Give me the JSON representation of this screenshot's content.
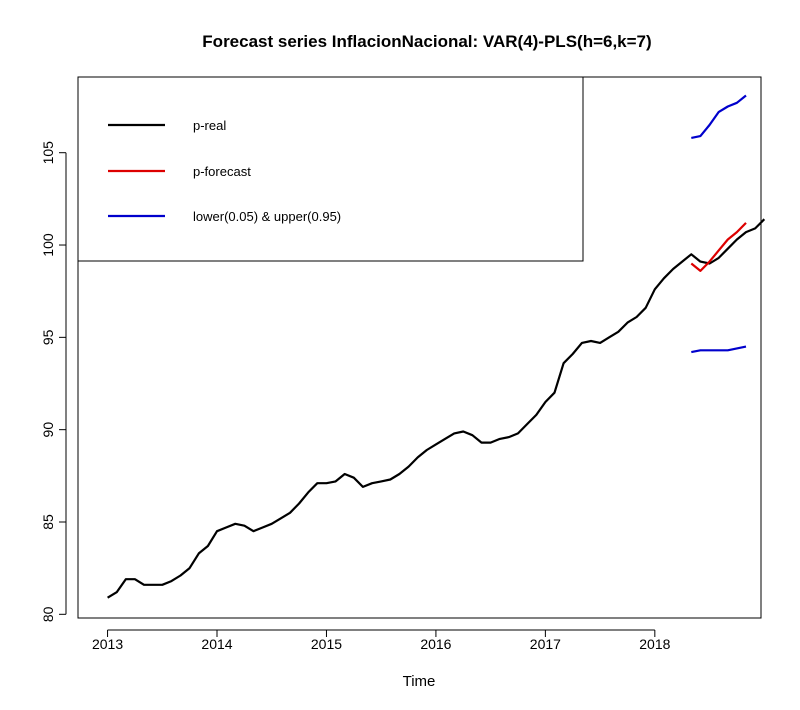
{
  "chart_data": {
    "type": "line",
    "title": "Forecast series InflacionNacional: VAR(4)-PLS(h=6,k=7)",
    "xlabel": "Time",
    "ylabel": "",
    "xlim": [
      2012.73,
      2018.97
    ],
    "ylim": [
      79.8,
      109.1
    ],
    "x_ticks": [
      2013,
      2014,
      2015,
      2016,
      2017,
      2018
    ],
    "x_tick_labels": [
      "2013",
      "2014",
      "2015",
      "2016",
      "2017",
      "2018"
    ],
    "y_ticks": [
      80,
      85,
      90,
      95,
      100,
      105
    ],
    "y_tick_labels": [
      "80",
      "85",
      "90",
      "95",
      "100",
      "105"
    ],
    "legend_position": "top-left",
    "grid": false,
    "series": [
      {
        "name": "p-real",
        "color": "#000000",
        "x_start": 2013.0,
        "x_step": 0.083333,
        "values": [
          80.9,
          81.2,
          81.9,
          81.9,
          81.6,
          81.6,
          81.6,
          81.8,
          82.1,
          82.5,
          83.3,
          83.7,
          84.5,
          84.7,
          84.9,
          84.8,
          84.5,
          84.7,
          84.9,
          85.2,
          85.5,
          86.0,
          86.6,
          87.1,
          87.1,
          87.2,
          87.6,
          87.4,
          86.9,
          87.1,
          87.2,
          87.3,
          87.6,
          88.0,
          88.5,
          88.9,
          89.2,
          89.5,
          89.8,
          89.9,
          89.7,
          89.3,
          89.3,
          89.5,
          89.6,
          89.8,
          90.3,
          90.8,
          91.5,
          92.0,
          93.6,
          94.1,
          94.7,
          94.8,
          94.7,
          95.0,
          95.3,
          95.8,
          96.1,
          96.6,
          97.6,
          98.2,
          98.7,
          99.1,
          99.5,
          99.1,
          99.0,
          99.3,
          99.8,
          100.3,
          100.7,
          100.9,
          101.4
        ]
      },
      {
        "name": "p-forecast",
        "color": "#dd0000",
        "x_start": 2018.333,
        "x_step": 0.083333,
        "values": [
          99.0,
          98.6,
          99.1,
          99.7,
          100.3,
          100.7,
          101.2
        ]
      },
      {
        "name": "lower(0.05) & upper(0.95)",
        "color": "#0000cc",
        "x_start": 2018.333,
        "x_step": 0.083333,
        "values": [
          94.2,
          94.3,
          94.3,
          94.3,
          94.3,
          94.4,
          94.5
        ]
      },
      {
        "name": "",
        "color": "#0000cc",
        "x_start": 2018.333,
        "x_step": 0.083333,
        "values": [
          105.8,
          105.9,
          106.5,
          107.2,
          107.5,
          107.7,
          108.1
        ]
      }
    ],
    "legend": [
      "p-real",
      "p-forecast",
      "lower(0.05) & upper(0.95)"
    ]
  }
}
